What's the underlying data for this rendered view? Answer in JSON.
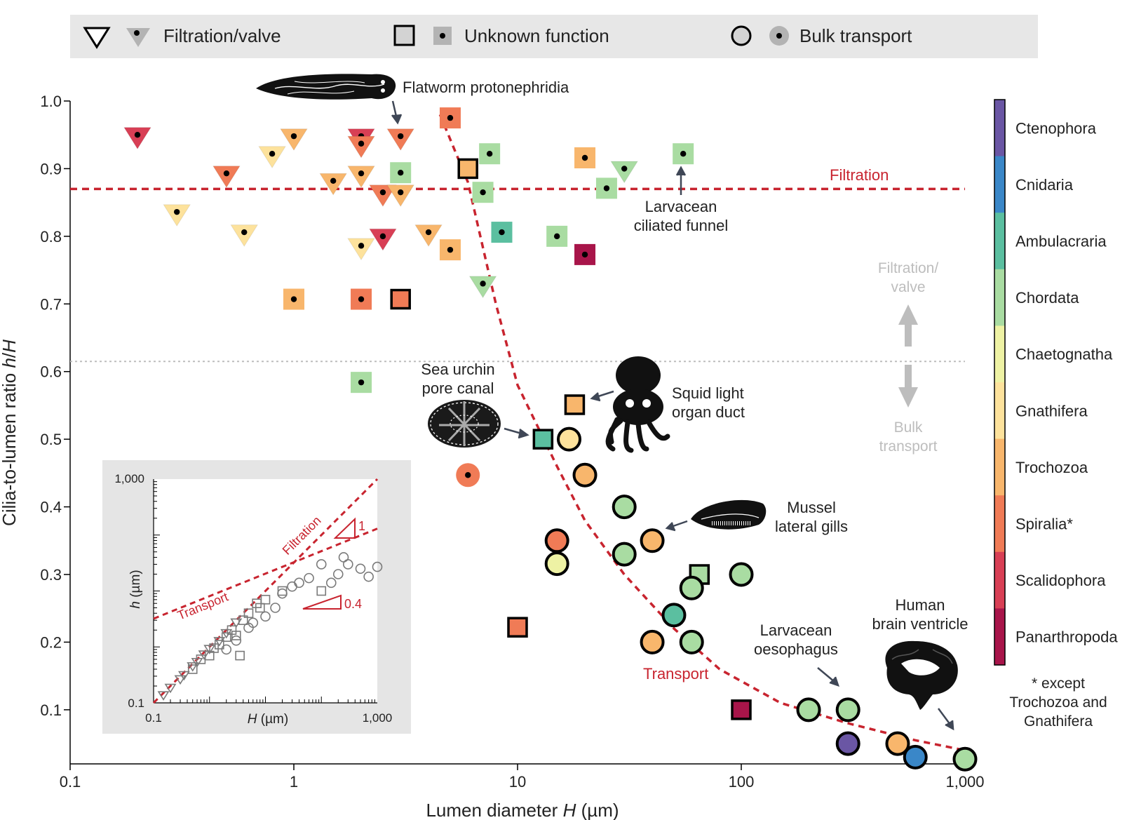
{
  "legend": {
    "filtration": "Filtration/valve",
    "unknown": "Unknown function",
    "bulk": "Bulk transport"
  },
  "colors": {
    "Ctenophora": "#6a56a4",
    "Cnidaria": "#3a87c8",
    "Ambulacraria": "#5bbfa0",
    "Chordata": "#a9dca2",
    "Chaetognatha": "#eef2a4",
    "Gnathifera": "#fde29c",
    "Trochozoa": "#f8b66c",
    "Spiralia": "#f07b56",
    "Scalidophora": "#d83f55",
    "Panarthropoda": "#a8154a",
    "accent_red": "#c8242f",
    "threshold_gray": "#bdbdbd"
  },
  "colorbar": {
    "labels": [
      "Ctenophora",
      "Cnidaria",
      "Ambulacraria",
      "Chordata",
      "Chaetognatha",
      "Gnathifera",
      "Trochozoa",
      "Spiralia*",
      "Scalidophora",
      "Panarthropoda"
    ],
    "footnote": [
      "* except",
      "Trochozoa and",
      "Gnathifera"
    ]
  },
  "annotations": {
    "flatworm": [
      "Flatworm protonephridia"
    ],
    "larv_funnel": [
      "Larvacean",
      "ciliated funnel"
    ],
    "urchin": [
      "Sea urchin",
      "pore canal"
    ],
    "squid": [
      "Squid light",
      "organ duct"
    ],
    "mussel": [
      "Mussel",
      "lateral gills"
    ],
    "larv_oeso": [
      "Larvacean",
      "oesophagus"
    ],
    "brain": [
      "Human",
      "brain ventricle"
    ],
    "filtration_line": "Filtration",
    "transport_curve": "Transport",
    "regime_up": [
      "Filtration/",
      "valve"
    ],
    "regime_down": [
      "Bulk",
      "transport"
    ]
  },
  "chart_data": [
    {
      "type": "scatter",
      "xlabel_parts": [
        "Lumen diameter ",
        "H",
        " (µm)"
      ],
      "ylabel_parts": [
        "Cilia-to-lumen ratio ",
        "h",
        "/",
        "H"
      ],
      "xscale": "log",
      "xlim": [
        0.1,
        1000
      ],
      "ylim": [
        0.02,
        1.0
      ],
      "xticks": [
        0.1,
        1,
        10,
        100,
        1000
      ],
      "xtick_labels": [
        "0.1",
        "1",
        "10",
        "100",
        "1,000"
      ],
      "yticks": [
        0.1,
        0.2,
        0.3,
        0.4,
        0.5,
        0.6,
        0.7,
        0.8,
        0.9,
        1.0
      ],
      "ytick_labels": [
        "0.1",
        "0.2",
        "0.3",
        "0.4",
        "0.5",
        "0.6",
        "0.7",
        "0.8",
        "0.9",
        "1.0"
      ],
      "filtration_threshold": 0.87,
      "regime_boundary": 0.615,
      "transport_curve": [
        [
          4.5,
          0.98
        ],
        [
          6,
          0.88
        ],
        [
          8,
          0.7
        ],
        [
          10,
          0.58
        ],
        [
          15,
          0.46
        ],
        [
          20,
          0.38
        ],
        [
          30,
          0.3
        ],
        [
          50,
          0.22
        ],
        [
          80,
          0.16
        ],
        [
          150,
          0.11
        ],
        [
          300,
          0.08
        ],
        [
          600,
          0.055
        ],
        [
          1000,
          0.04
        ]
      ],
      "points": [
        {
          "shape": "tri",
          "clade": "Scalidophora",
          "x": 0.2,
          "y": 0.95,
          "dot": true
        },
        {
          "shape": "tri",
          "clade": "Spiralia",
          "x": 0.5,
          "y": 0.893,
          "dot": true
        },
        {
          "shape": "tri",
          "clade": "Gnathifera",
          "x": 0.3,
          "y": 0.836,
          "dot": true
        },
        {
          "shape": "tri",
          "clade": "Gnathifera",
          "x": 0.6,
          "y": 0.806,
          "dot": true
        },
        {
          "shape": "tri",
          "clade": "Gnathifera",
          "x": 0.8,
          "y": 0.922,
          "dot": true
        },
        {
          "shape": "tri",
          "clade": "Trochozoa",
          "x": 1.0,
          "y": 0.948,
          "dot": true
        },
        {
          "shape": "tri",
          "clade": "Trochozoa",
          "x": 1.5,
          "y": 0.882,
          "dot": true
        },
        {
          "shape": "tri",
          "clade": "Scalidophora",
          "x": 2.0,
          "y": 0.948,
          "dot": true
        },
        {
          "shape": "tri",
          "clade": "Spiralia",
          "x": 2.0,
          "y": 0.937,
          "dot": true
        },
        {
          "shape": "tri",
          "clade": "Trochozoa",
          "x": 2.0,
          "y": 0.893,
          "dot": true
        },
        {
          "shape": "tri",
          "clade": "Spiralia",
          "x": 2.5,
          "y": 0.865,
          "dot": true
        },
        {
          "shape": "tri",
          "clade": "Spiralia",
          "x": 3.0,
          "y": 0.948,
          "dot": true
        },
        {
          "shape": "tri",
          "clade": "Trochozoa",
          "x": 3.0,
          "y": 0.865,
          "dot": true
        },
        {
          "shape": "tri",
          "clade": "Gnathifera",
          "x": 2.0,
          "y": 0.786,
          "dot": true
        },
        {
          "shape": "tri",
          "clade": "Scalidophora",
          "x": 2.5,
          "y": 0.8,
          "dot": true
        },
        {
          "shape": "tri",
          "clade": "Trochozoa",
          "x": 4.0,
          "y": 0.806,
          "dot": true
        },
        {
          "shape": "tri",
          "clade": "Chordata",
          "x": 7.0,
          "y": 0.73,
          "dot": true
        },
        {
          "shape": "tri",
          "clade": "Chordata",
          "x": 30.0,
          "y": 0.9,
          "dot": true
        },
        {
          "shape": "sq",
          "clade": "Spiralia",
          "x": 5.0,
          "y": 0.975,
          "dot": true
        },
        {
          "shape": "sq",
          "clade": "Chordata",
          "x": 7.5,
          "y": 0.922,
          "dot": true
        },
        {
          "shape": "sq",
          "clade": "Chordata",
          "x": 3.0,
          "y": 0.894,
          "dot": true
        },
        {
          "shape": "sq",
          "clade": "Trochozoa",
          "x": 6.0,
          "y": 0.9,
          "dot": false
        },
        {
          "shape": "sq",
          "clade": "Chordata",
          "x": 7.0,
          "y": 0.865,
          "dot": true
        },
        {
          "shape": "sq",
          "clade": "Trochozoa",
          "x": 20.0,
          "y": 0.916,
          "dot": true
        },
        {
          "shape": "sq",
          "clade": "Chordata",
          "x": 25.0,
          "y": 0.871,
          "dot": true
        },
        {
          "shape": "sq",
          "clade": "Chordata",
          "x": 55.0,
          "y": 0.922,
          "dot": true
        },
        {
          "shape": "sq",
          "clade": "Ambulacraria",
          "x": 8.5,
          "y": 0.806,
          "dot": true
        },
        {
          "shape": "sq",
          "clade": "Chordata",
          "x": 15.0,
          "y": 0.8,
          "dot": true
        },
        {
          "shape": "sq",
          "clade": "Panarthropoda",
          "x": 20.0,
          "y": 0.773,
          "dot": true
        },
        {
          "shape": "sq",
          "clade": "Trochozoa",
          "x": 5.0,
          "y": 0.78,
          "dot": true
        },
        {
          "shape": "sq",
          "clade": "Trochozoa",
          "x": 1.0,
          "y": 0.707,
          "dot": true
        },
        {
          "shape": "sq",
          "clade": "Spiralia",
          "x": 2.0,
          "y": 0.707,
          "dot": true
        },
        {
          "shape": "sq",
          "clade": "Spiralia",
          "x": 3.0,
          "y": 0.707,
          "dot": false
        },
        {
          "shape": "sq",
          "clade": "Chordata",
          "x": 2.0,
          "y": 0.584,
          "dot": true
        },
        {
          "shape": "sq",
          "clade": "Trochozoa",
          "x": 18.0,
          "y": 0.551,
          "dot": false
        },
        {
          "shape": "sq",
          "clade": "Ambulacraria",
          "x": 13.0,
          "y": 0.5,
          "dot": false
        },
        {
          "shape": "sq",
          "clade": "Spiralia",
          "x": 10.0,
          "y": 0.222,
          "dot": false
        },
        {
          "shape": "sq",
          "clade": "Chordata",
          "x": 65.0,
          "y": 0.3,
          "dot": false
        },
        {
          "shape": "sq",
          "clade": "Panarthropoda",
          "x": 100.0,
          "y": 0.1,
          "dot": false
        },
        {
          "shape": "circ",
          "clade": "Spiralia",
          "x": 6.0,
          "y": 0.447,
          "dot": true
        },
        {
          "shape": "circ",
          "clade": "Gnathifera",
          "x": 17.0,
          "y": 0.5,
          "dot": false
        },
        {
          "shape": "circ",
          "clade": "Trochozoa",
          "x": 20.0,
          "y": 0.447,
          "dot": false
        },
        {
          "shape": "circ",
          "clade": "Chordata",
          "x": 30.0,
          "y": 0.4,
          "dot": false
        },
        {
          "shape": "circ",
          "clade": "Spiralia",
          "x": 15.0,
          "y": 0.35,
          "dot": false
        },
        {
          "shape": "circ",
          "clade": "Chaetognatha",
          "x": 15.0,
          "y": 0.316,
          "dot": false
        },
        {
          "shape": "circ",
          "clade": "Chordata",
          "x": 30.0,
          "y": 0.33,
          "dot": false
        },
        {
          "shape": "circ",
          "clade": "Trochozoa",
          "x": 40.0,
          "y": 0.35,
          "dot": false
        },
        {
          "shape": "circ",
          "clade": "Chordata",
          "x": 60.0,
          "y": 0.28,
          "dot": false
        },
        {
          "shape": "circ",
          "clade": "Chordata",
          "x": 100.0,
          "y": 0.3,
          "dot": false
        },
        {
          "shape": "circ",
          "clade": "Ambulacraria",
          "x": 50.0,
          "y": 0.24,
          "dot": false
        },
        {
          "shape": "circ",
          "clade": "Trochozoa",
          "x": 40.0,
          "y": 0.2,
          "dot": false
        },
        {
          "shape": "circ",
          "clade": "Chordata",
          "x": 60.0,
          "y": 0.2,
          "dot": false
        },
        {
          "shape": "circ",
          "clade": "Chordata",
          "x": 200.0,
          "y": 0.1,
          "dot": false
        },
        {
          "shape": "circ",
          "clade": "Chordata",
          "x": 300.0,
          "y": 0.1,
          "dot": false
        },
        {
          "shape": "circ",
          "clade": "Ctenophora",
          "x": 300.0,
          "y": 0.05,
          "dot": false
        },
        {
          "shape": "circ",
          "clade": "Trochozoa",
          "x": 500.0,
          "y": 0.05,
          "dot": false
        },
        {
          "shape": "circ",
          "clade": "Cnidaria",
          "x": 600.0,
          "y": 0.03,
          "dot": false
        },
        {
          "shape": "circ",
          "clade": "Chordata",
          "x": 1000.0,
          "y": 0.027,
          "dot": false
        }
      ]
    },
    {
      "type": "scatter",
      "xlabel_parts": [
        "H",
        " (µm)"
      ],
      "ylabel_parts": [
        "h",
        " (µm)"
      ],
      "xscale": "log",
      "yscale": "log",
      "xlim": [
        0.1,
        1000
      ],
      "ylim": [
        0.1,
        1000
      ],
      "xtick_labels": [
        "0.1",
        "1,000"
      ],
      "ytick_labels": [
        "1,000",
        "0.1"
      ],
      "lines": [
        {
          "label": "Filtration",
          "points": [
            [
              0.1,
              0.1
            ],
            [
              1000,
              1000
            ]
          ]
        },
        {
          "label": "Transport",
          "points": [
            [
              0.1,
              3.2
            ],
            [
              1000,
              130
            ]
          ]
        }
      ],
      "slopes": [
        "1",
        "0.4"
      ],
      "points": [
        {
          "shape": "tri",
          "x": 0.15,
          "y": 0.14
        },
        {
          "shape": "tri",
          "x": 0.2,
          "y": 0.19
        },
        {
          "shape": "tri",
          "x": 0.3,
          "y": 0.27
        },
        {
          "shape": "tri",
          "x": 0.35,
          "y": 0.32
        },
        {
          "shape": "tri",
          "x": 0.5,
          "y": 0.46
        },
        {
          "shape": "tri",
          "x": 0.6,
          "y": 0.55
        },
        {
          "shape": "tri",
          "x": 0.8,
          "y": 0.75
        },
        {
          "shape": "tri",
          "x": 1.0,
          "y": 0.94
        },
        {
          "shape": "tri",
          "x": 1.5,
          "y": 1.3
        },
        {
          "shape": "tri",
          "x": 3.0,
          "y": 2.8
        },
        {
          "shape": "tri",
          "x": 2.0,
          "y": 1.8
        },
        {
          "shape": "sq",
          "x": 0.5,
          "y": 0.4
        },
        {
          "shape": "sq",
          "x": 0.7,
          "y": 0.6
        },
        {
          "shape": "sq",
          "x": 1.0,
          "y": 0.7
        },
        {
          "shape": "sq",
          "x": 1.2,
          "y": 0.95
        },
        {
          "shape": "sq",
          "x": 1.5,
          "y": 1.1
        },
        {
          "shape": "sq",
          "x": 2.0,
          "y": 1.5
        },
        {
          "shape": "sq",
          "x": 2.5,
          "y": 2.0
        },
        {
          "shape": "sq",
          "x": 3.0,
          "y": 1.6
        },
        {
          "shape": "sq",
          "x": 4.0,
          "y": 3.0
        },
        {
          "shape": "sq",
          "x": 5.0,
          "y": 4.0
        },
        {
          "shape": "sq",
          "x": 7.0,
          "y": 6.0
        },
        {
          "shape": "sq",
          "x": 8.0,
          "y": 5.0
        },
        {
          "shape": "sq",
          "x": 10.0,
          "y": 7.0
        },
        {
          "shape": "sq",
          "x": 20.0,
          "y": 10.0
        },
        {
          "shape": "sq",
          "x": 3.5,
          "y": 0.7
        },
        {
          "shape": "sq",
          "x": 100.0,
          "y": 10.0
        },
        {
          "shape": "circ",
          "x": 2.0,
          "y": 0.9
        },
        {
          "shape": "circ",
          "x": 3.0,
          "y": 1.3
        },
        {
          "shape": "circ",
          "x": 5.0,
          "y": 2.2
        },
        {
          "shape": "circ",
          "x": 6.0,
          "y": 2.7
        },
        {
          "shape": "circ",
          "x": 10.0,
          "y": 3.5
        },
        {
          "shape": "circ",
          "x": 15.0,
          "y": 5.0
        },
        {
          "shape": "circ",
          "x": 20.0,
          "y": 9.0
        },
        {
          "shape": "circ",
          "x": 30.0,
          "y": 12.0
        },
        {
          "shape": "circ",
          "x": 40.0,
          "y": 14.0
        },
        {
          "shape": "circ",
          "x": 60.0,
          "y": 17.0
        },
        {
          "shape": "circ",
          "x": 100.0,
          "y": 30.0
        },
        {
          "shape": "circ",
          "x": 200.0,
          "y": 20.0
        },
        {
          "shape": "circ",
          "x": 300.0,
          "y": 30.0
        },
        {
          "shape": "circ",
          "x": 500.0,
          "y": 25.0
        },
        {
          "shape": "circ",
          "x": 700.0,
          "y": 18.0
        },
        {
          "shape": "circ",
          "x": 1000.0,
          "y": 27.0
        },
        {
          "shape": "circ",
          "x": 150.0,
          "y": 14.0
        },
        {
          "shape": "circ",
          "x": 250.0,
          "y": 40.0
        }
      ]
    }
  ]
}
